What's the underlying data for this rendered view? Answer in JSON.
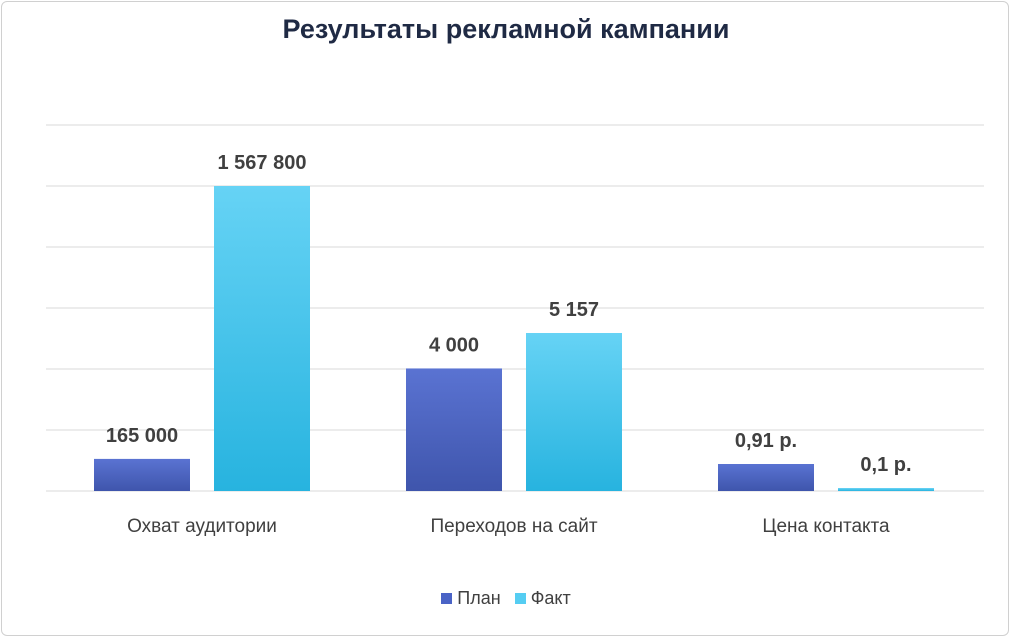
{
  "chart_data": {
    "type": "bar",
    "title": "Результаты рекламной кампании",
    "categories": [
      "Охват аудитории",
      "Переходов на сайт",
      "Цена контакта"
    ],
    "series": [
      {
        "name": "План",
        "values": [
          165000,
          4000,
          0.91
        ],
        "labels": [
          "165 000",
          "4 000",
          "0,91 р."
        ],
        "color": "#4a63c6"
      },
      {
        "name": "Факт",
        "values": [
          1567800,
          5157,
          0.1
        ],
        "labels": [
          "1 567 800",
          "5 157",
          "0,1 р."
        ],
        "color": "#55cdf2"
      }
    ],
    "grid": true,
    "legend": "bottom",
    "xlabel": "",
    "ylabel": ""
  }
}
